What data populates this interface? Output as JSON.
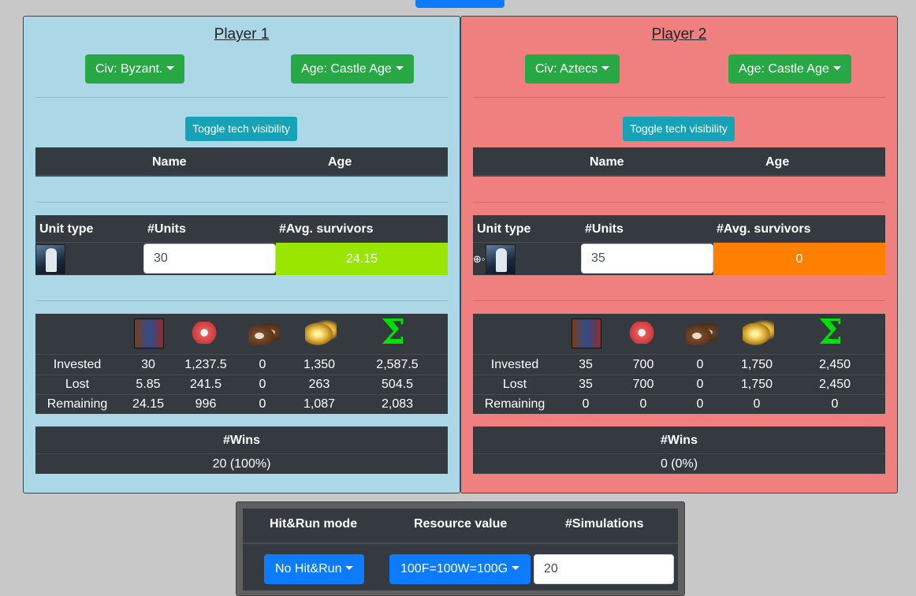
{
  "top_button": {
    "label": ""
  },
  "players": [
    {
      "title": "Player 1",
      "civ": "Civ: Byzant.",
      "age": "Age: Castle Age",
      "toggle": "Toggle tech visibility",
      "tech_headers": [
        "Name",
        "Age"
      ],
      "unit_headers": [
        "Unit type",
        "#Units",
        "#Avg. survivors"
      ],
      "units": "30",
      "survivors": "24.15",
      "survivors_color": "#99e600",
      "rows": [
        {
          "label": "Invested",
          "values": [
            "30",
            "1,237.5",
            "0",
            "1,350",
            "2,587.5"
          ]
        },
        {
          "label": "Lost",
          "values": [
            "5.85",
            "241.5",
            "0",
            "263",
            "504.5"
          ]
        },
        {
          "label": "Remaining",
          "values": [
            "24.15",
            "996",
            "0",
            "1,087",
            "2,083"
          ]
        }
      ],
      "wins_header": "#Wins",
      "wins": "20 (100%)"
    },
    {
      "title": "Player 2",
      "civ": "Civ: Aztecs",
      "age": "Age: Castle Age",
      "toggle": "Toggle tech visibility",
      "tech_headers": [
        "Name",
        "Age"
      ],
      "unit_headers": [
        "Unit type",
        "#Units",
        "#Avg. survivors"
      ],
      "units": "35",
      "survivors": "0",
      "survivors_color": "#ff8000",
      "rows": [
        {
          "label": "Invested",
          "values": [
            "35",
            "700",
            "0",
            "1,750",
            "2,450"
          ]
        },
        {
          "label": "Lost",
          "values": [
            "35",
            "700",
            "0",
            "1,750",
            "2,450"
          ]
        },
        {
          "label": "Remaining",
          "values": [
            "0",
            "0",
            "0",
            "0",
            "0"
          ]
        }
      ],
      "wins_header": "#Wins",
      "wins": "0 (0%)"
    }
  ],
  "resource_icons": [
    "army-icon",
    "food-icon",
    "wood-icon",
    "gold-icon",
    "sum-icon"
  ],
  "settings": {
    "headers": [
      "Hit&Run mode",
      "Resource value",
      "#Simulations"
    ],
    "hitrun": "No Hit&Run",
    "resource_value": "100F=100W=100G",
    "simulations": "20"
  },
  "colors": {
    "player1_bg": "#acd7e6",
    "player2_bg": "#f08080",
    "green_button": "#28a745",
    "blue_button": "#0d7bfd",
    "teal_button": "#17a2b8"
  }
}
